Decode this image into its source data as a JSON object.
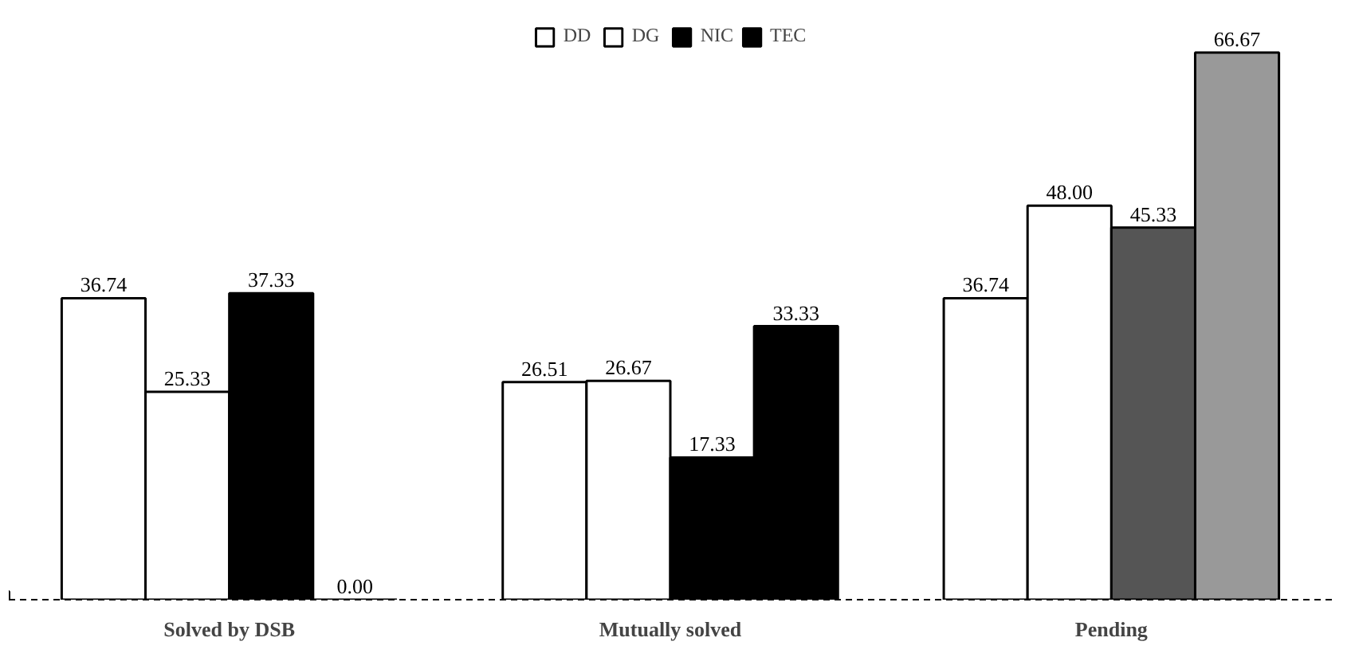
{
  "chart_data": {
    "type": "bar",
    "categories": [
      "Solved by DSB",
      "Mutually solved",
      "Pending"
    ],
    "series": [
      {
        "name": "DD",
        "color": "#ffffff",
        "values": [
          36.74,
          26.51,
          36.74
        ],
        "value_labels": [
          "36.74",
          "26.51",
          "36.74"
        ]
      },
      {
        "name": "DG",
        "color": "#ffffff",
        "values": [
          25.33,
          26.67,
          48.0
        ],
        "value_labels": [
          "25.33",
          "26.67",
          "48.00"
        ]
      },
      {
        "name": "NIC",
        "color": "#000000",
        "colors": [
          "#000000",
          "#000000",
          "#555555"
        ],
        "values": [
          37.33,
          17.33,
          45.33
        ],
        "value_labels": [
          "37.33",
          "17.33",
          "45.33"
        ]
      },
      {
        "name": "TEC",
        "color": "#000000",
        "colors": [
          "#000000",
          "#000000",
          "#999999"
        ],
        "values": [
          0.0,
          33.33,
          66.67
        ],
        "value_labels": [
          "0.00",
          "33.33",
          "66.67"
        ]
      }
    ],
    "legend": "top"
  }
}
